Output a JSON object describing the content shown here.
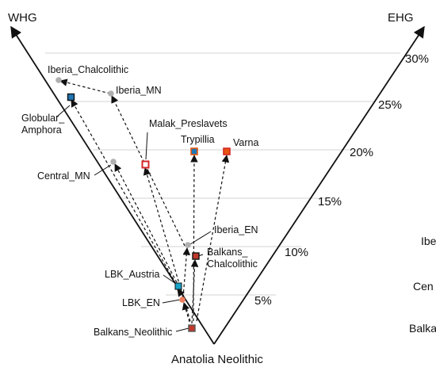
{
  "corners": {
    "left": "WHG",
    "right": "EHG",
    "bottom": "Anatolia Neolithic"
  },
  "percent_labels": [
    "5%",
    "10%",
    "15%",
    "20%",
    "25%",
    "30%"
  ],
  "samples": [
    {
      "id": "iberia_chalcolithic",
      "label": "Iberia_Chalcolithic",
      "marker": "dot",
      "color": "#b0b0b0"
    },
    {
      "id": "iberia_mn",
      "label": "Iberia_MN",
      "marker": "dot",
      "color": "#b0b0b0"
    },
    {
      "id": "globular_amphora",
      "label": [
        "Globular_",
        "Amphora"
      ],
      "marker": "square",
      "color": "#1f77b4"
    },
    {
      "id": "malak_preslavets",
      "label": "Malak_Preslavets",
      "marker": "square",
      "color": "#d62728"
    },
    {
      "id": "trypillia",
      "label": "Trypillia",
      "marker": "square",
      "color": "#1f77b4"
    },
    {
      "id": "varna",
      "label": "Varna",
      "marker": "square",
      "color": "#e6550d"
    },
    {
      "id": "central_mn",
      "label": "Central_MN",
      "marker": "dot",
      "color": "#b0b0b0"
    },
    {
      "id": "iberia_en",
      "label": "Iberia_EN",
      "marker": "dot",
      "color": "#b0b0b0"
    },
    {
      "id": "balkans_chalcolithic",
      "label": [
        "Balkans_",
        "Chalcolithic"
      ],
      "marker": "square",
      "color": "#d62728"
    },
    {
      "id": "lbk_austria",
      "label": "LBK_Austria",
      "marker": "square",
      "color": "#17a2c8"
    },
    {
      "id": "lbk_en",
      "label": "LBK_EN",
      "marker": "dot",
      "color": "#f08060"
    },
    {
      "id": "balkans_neolithic",
      "label": "Balkans_Neolithic",
      "marker": "square",
      "color": "#c0392b"
    }
  ],
  "truncated_labels": [
    "Ibe",
    "Cen",
    "Balka"
  ]
}
